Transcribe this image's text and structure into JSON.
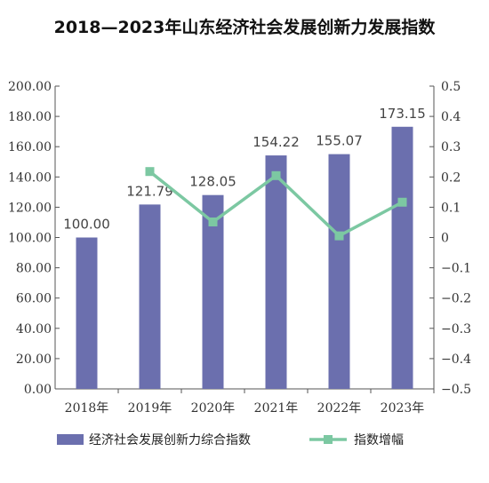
{
  "chart_data": {
    "type": "bar+line",
    "title": "2018—2023年山东经济社会发展创新力发展指数",
    "categories": [
      "2018年",
      "2019年",
      "2020年",
      "2021年",
      "2022年",
      "2023年"
    ],
    "series": [
      {
        "name": "经济社会发展创新力综合指数",
        "type": "bar",
        "axis": "left",
        "values": [
          100.0,
          121.79,
          128.05,
          154.22,
          155.07,
          173.15
        ],
        "labels": [
          "100.00",
          "121.79",
          "128.05",
          "154.22",
          "155.07",
          "173.15"
        ],
        "color": "#6b6fae"
      },
      {
        "name": "指数增幅",
        "type": "line",
        "axis": "right",
        "values": [
          null,
          0.2179,
          0.0514,
          0.2044,
          0.0055,
          0.1166
        ],
        "color": "#7cc8a2"
      }
    ],
    "y_left": {
      "ylim": [
        0,
        200
      ],
      "ticks": [
        0,
        20,
        40,
        60,
        80,
        100,
        120,
        140,
        160,
        180,
        200
      ],
      "tick_labels": [
        "0.00",
        "20.00",
        "40.00",
        "60.00",
        "80.00",
        "100.00",
        "120.00",
        "140.00",
        "160.00",
        "180.00",
        "200.00"
      ]
    },
    "y_right": {
      "ylim": [
        -0.5,
        0.5
      ],
      "ticks": [
        0.5,
        0.4,
        0.3,
        0.2,
        0.1,
        0,
        -0.1,
        -0.2,
        -0.3,
        -0.4,
        -0.5
      ],
      "tick_labels": [
        "0.5",
        "0.4",
        "0.3",
        "0.2",
        "0.1",
        "0",
        "−0.1",
        "−0.2",
        "−0.3",
        "−0.4",
        "−0.5"
      ]
    },
    "grid": false,
    "legend": "bottom"
  }
}
